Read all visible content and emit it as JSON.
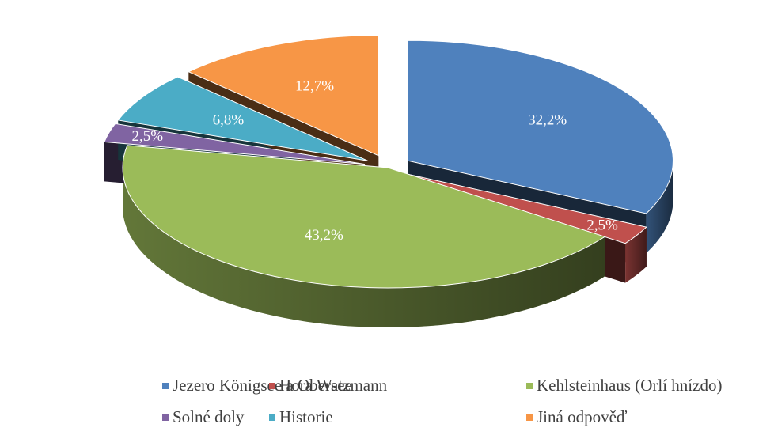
{
  "chart_data": {
    "type": "pie",
    "categories": [
      "Jezero Königsee a Obersee",
      "Hora Watzmann",
      "Kehlsteinhaus (Orlí hnízdo)",
      "Solné doly",
      "Historie",
      "Jiná odpověď"
    ],
    "values": [
      32.2,
      2.5,
      43.2,
      2.5,
      6.8,
      12.7
    ],
    "value_labels": [
      "32,2%",
      "2,5%",
      "43,2%",
      "2,5%",
      "6,8%",
      "12,7%"
    ],
    "colors": [
      "#4f81bd",
      "#c0504d",
      "#9bbb59",
      "#8064a2",
      "#4bacc6",
      "#f79646"
    ],
    "legend": "bottom"
  }
}
